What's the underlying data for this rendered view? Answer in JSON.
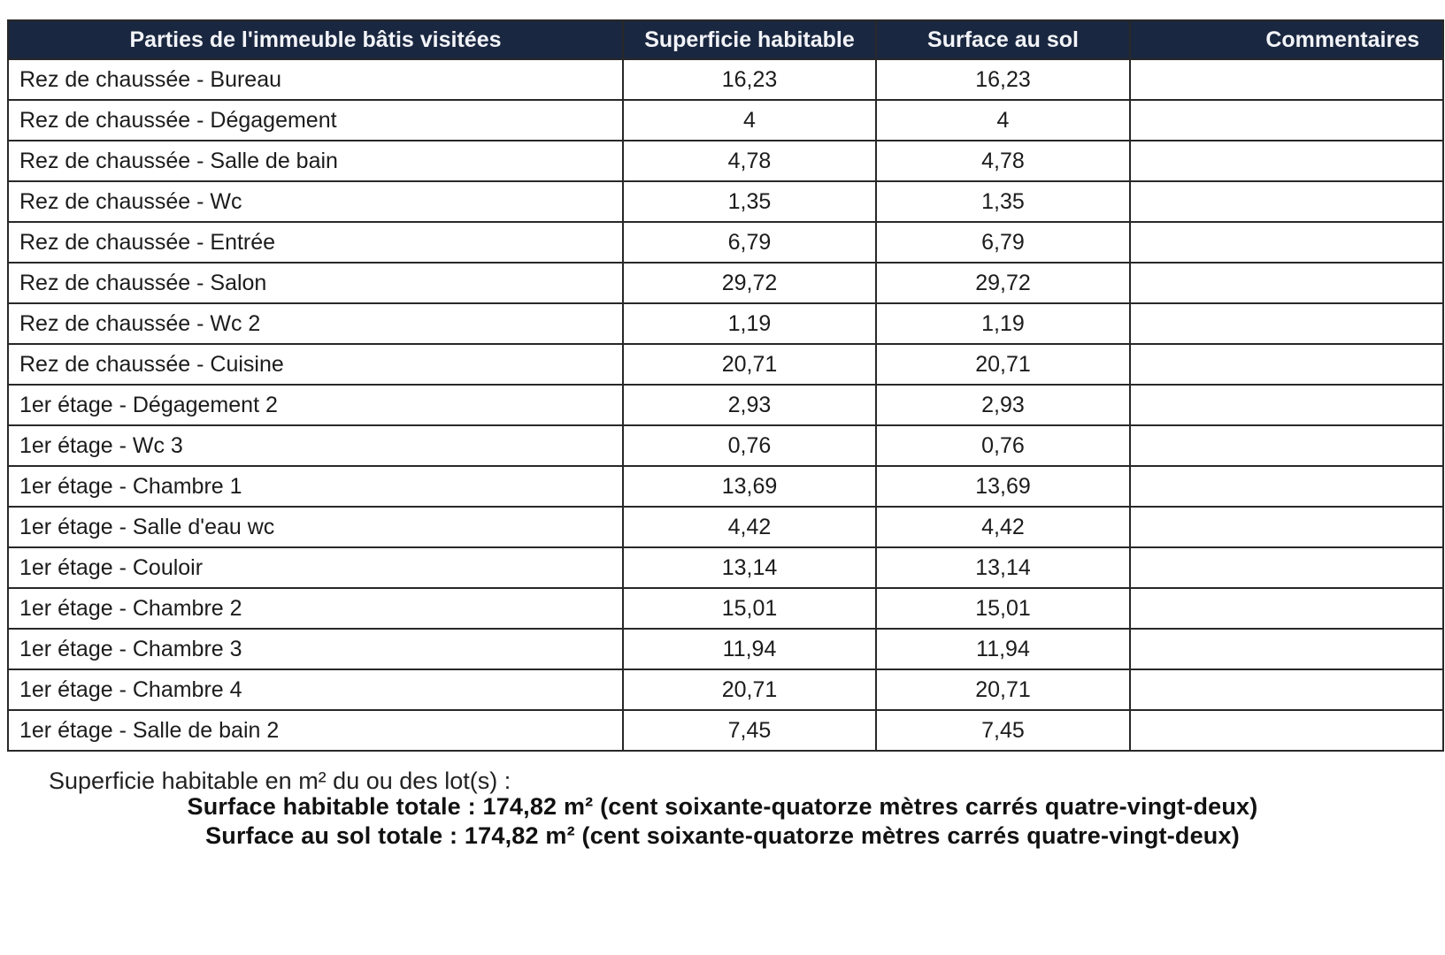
{
  "table": {
    "headers": {
      "parts": "Parties de l'immeuble bâtis visitées",
      "superficie": "Superficie habitable",
      "surface": "Surface au sol",
      "commentaires": "Commentaires"
    },
    "rows": [
      {
        "label": "Rez de chaussée - Bureau",
        "superficie": "16,23",
        "surface": "16,23",
        "commentaire": ""
      },
      {
        "label": "Rez de chaussée - Dégagement",
        "superficie": "4",
        "surface": "4",
        "commentaire": ""
      },
      {
        "label": "Rez de chaussée - Salle de bain",
        "superficie": "4,78",
        "surface": "4,78",
        "commentaire": ""
      },
      {
        "label": "Rez de chaussée - Wc",
        "superficie": "1,35",
        "surface": "1,35",
        "commentaire": ""
      },
      {
        "label": "Rez de chaussée - Entrée",
        "superficie": "6,79",
        "surface": "6,79",
        "commentaire": ""
      },
      {
        "label": "Rez de chaussée - Salon",
        "superficie": "29,72",
        "surface": "29,72",
        "commentaire": ""
      },
      {
        "label": "Rez de chaussée - Wc 2",
        "superficie": "1,19",
        "surface": "1,19",
        "commentaire": ""
      },
      {
        "label": "Rez de chaussée - Cuisine",
        "superficie": "20,71",
        "surface": "20,71",
        "commentaire": ""
      },
      {
        "label": "1er étage - Dégagement 2",
        "superficie": "2,93",
        "surface": "2,93",
        "commentaire": ""
      },
      {
        "label": "1er étage - Wc 3",
        "superficie": "0,76",
        "surface": "0,76",
        "commentaire": ""
      },
      {
        "label": "1er étage - Chambre 1",
        "superficie": "13,69",
        "surface": "13,69",
        "commentaire": ""
      },
      {
        "label": "1er étage - Salle d'eau wc",
        "superficie": "4,42",
        "surface": "4,42",
        "commentaire": ""
      },
      {
        "label": "1er étage - Couloir",
        "superficie": "13,14",
        "surface": "13,14",
        "commentaire": ""
      },
      {
        "label": "1er étage - Chambre 2",
        "superficie": "15,01",
        "surface": "15,01",
        "commentaire": ""
      },
      {
        "label": "1er étage - Chambre 3",
        "superficie": "11,94",
        "surface": "11,94",
        "commentaire": ""
      },
      {
        "label": "1er étage - Chambre 4",
        "superficie": "20,71",
        "surface": "20,71",
        "commentaire": ""
      },
      {
        "label": "1er étage - Salle de bain 2",
        "superficie": "7,45",
        "surface": "7,45",
        "commentaire": ""
      }
    ]
  },
  "footer": {
    "intro": "Superficie habitable en m² du ou des lot(s) :",
    "total_habitable": "Surface habitable totale : 174,82 m² (cent soixante-quatorze mètres carrés quatre-vingt-deux)",
    "total_sol": "Surface au sol totale : 174,82 m² (cent soixante-quatorze mètres carrés quatre-vingt-deux)"
  },
  "colors": {
    "header_bg": "#1a2740",
    "header_text": "#f2f4f8",
    "border": "#282828",
    "body_text": "#1c1c1c"
  }
}
